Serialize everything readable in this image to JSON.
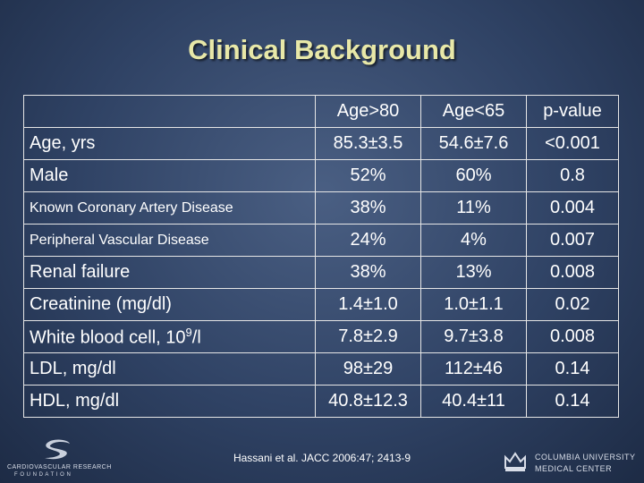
{
  "slide": {
    "title": "Clinical Background",
    "citation": "Hassani et al. JACC 2006:47; 2413-9"
  },
  "table": {
    "headers": [
      "",
      "Age>80",
      "Age<65",
      "p-value"
    ],
    "rows": [
      {
        "label": "Age, yrs",
        "values": [
          "85.3±3.5",
          "54.6±7.6",
          "<0.001"
        ]
      },
      {
        "label": "Male",
        "values": [
          "52%",
          "60%",
          "0.8"
        ]
      },
      {
        "label": "Known Coronary Artery Disease",
        "values": [
          "38%",
          "11%",
          "0.004"
        ]
      },
      {
        "label": "Peripheral Vascular Disease",
        "values": [
          "24%",
          "4%",
          "0.007"
        ]
      },
      {
        "label": "Renal failure",
        "values": [
          "38%",
          "13%",
          "0.008"
        ]
      },
      {
        "label": "Creatinine (mg/dl)",
        "values": [
          "1.4±1.0",
          "1.0±1.1",
          "0.02"
        ]
      },
      {
        "label": "White blood cell, 10",
        "label_sup": "9",
        "label_suffix": "/l",
        "values": [
          "7.8±2.9",
          "9.7±3.8",
          "0.008"
        ]
      },
      {
        "label": "LDL, mg/dl",
        "values": [
          "98±29",
          "112±46",
          "0.14"
        ]
      },
      {
        "label": "HDL, mg/dl",
        "values": [
          "40.8±12.3",
          "40.4±11",
          "0.14"
        ]
      }
    ]
  },
  "logos": {
    "left_line1": "CARDIOVASCULAR RESEARCH",
    "left_line2": "F O U N D A T I O N",
    "right_line1": "COLUMBIA UNIVERSITY",
    "right_line2": "MEDICAL CENTER"
  }
}
